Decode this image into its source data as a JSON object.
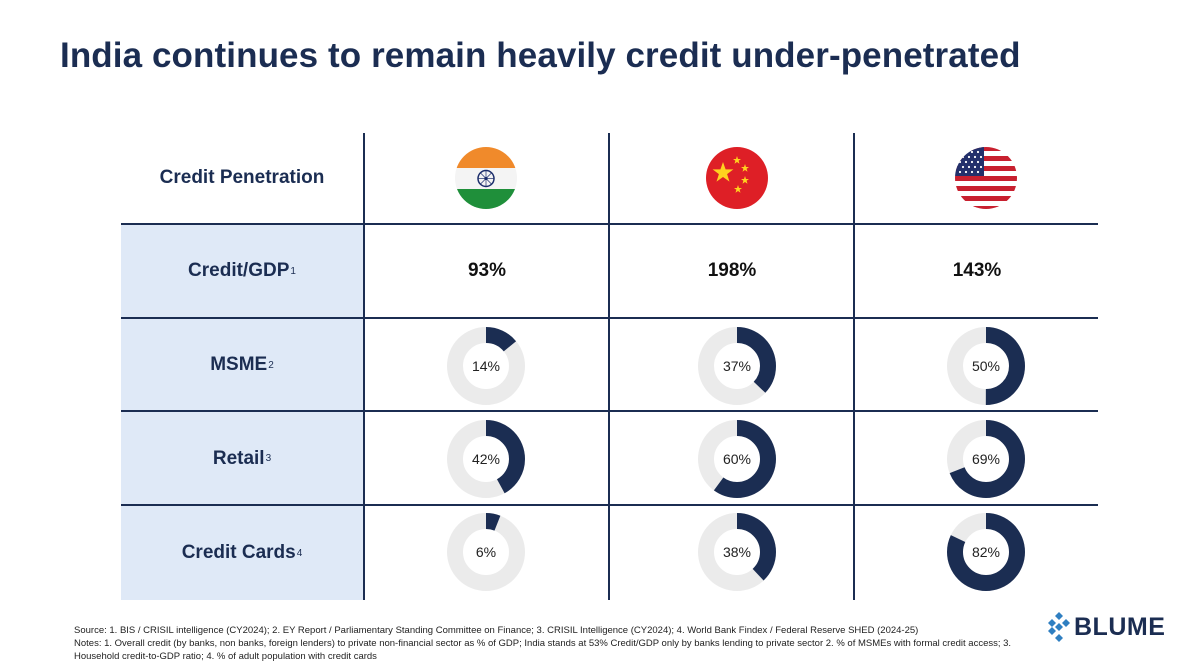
{
  "title": "India continues to remain heavily credit under-penetrated",
  "header": {
    "label": "Credit Penetration",
    "countries": [
      {
        "name": "India",
        "flag": "india-flag-icon"
      },
      {
        "name": "China",
        "flag": "china-flag-icon"
      },
      {
        "name": "United States",
        "flag": "usa-flag-icon"
      }
    ]
  },
  "rows": [
    {
      "label": "Credit/GDP",
      "note": "1",
      "values": [
        "93%",
        "198%",
        "143%"
      ]
    },
    {
      "label": "MSME",
      "note": "2"
    },
    {
      "label": "Retail",
      "note": "3"
    },
    {
      "label": "Credit Cards",
      "note": "4"
    }
  ],
  "chart_data": [
    {
      "type": "pie",
      "title": "MSME",
      "categories": [
        "India",
        "China",
        "United States"
      ],
      "values": [
        14,
        37,
        50
      ],
      "labels": [
        "14%",
        "37%",
        "50%"
      ]
    },
    {
      "type": "pie",
      "title": "Retail",
      "categories": [
        "India",
        "China",
        "United States"
      ],
      "values": [
        42,
        60,
        69
      ],
      "labels": [
        "42%",
        "60%",
        "69%"
      ]
    },
    {
      "type": "pie",
      "title": "Credit Cards",
      "categories": [
        "India",
        "China",
        "United States"
      ],
      "values": [
        6,
        38,
        82
      ],
      "labels": [
        "6%",
        "38%",
        "82%"
      ]
    }
  ],
  "colors": {
    "navy": "#1b2d52",
    "track": "#ebebeb",
    "shade": "#dfe9f7"
  },
  "footer": {
    "source": "Source: 1. BIS / CRISIL intelligence (CY2024); 2. EY Report / Parliamentary Standing Committee on Finance; 3. CRISIL Intelligence (CY2024); 4. World Bank Findex / Federal Reserve SHED (2024-25)",
    "notes": "Notes: 1. Overall credit (by banks, non banks, foreign lenders) to private non-financial sector as % of GDP; India stands at 53% Credit/GDP only by banks lending to private sector 2. % of MSMEs with formal credit access; 3. Household credit-to-GDP ratio; 4. % of adult population with credit cards"
  },
  "logo": {
    "text": "BLUME"
  }
}
